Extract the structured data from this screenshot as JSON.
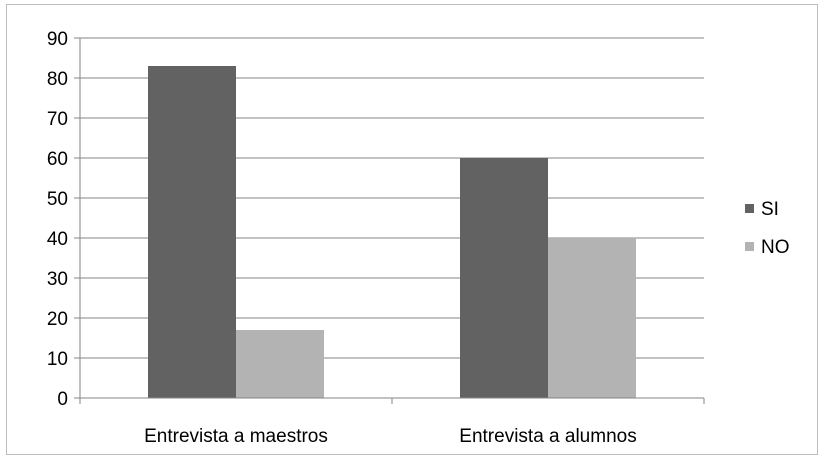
{
  "chart_data": {
    "type": "bar",
    "categories": [
      "Entrevista a maestros",
      "Entrevista a alumnos"
    ],
    "series": [
      {
        "name": "SI",
        "values": [
          83,
          60
        ],
        "color": "#626262"
      },
      {
        "name": "NO",
        "values": [
          17,
          40
        ],
        "color": "#b3b3b3"
      }
    ],
    "ylim": [
      0,
      90
    ],
    "yticks": [
      0,
      10,
      20,
      30,
      40,
      50,
      60,
      70,
      80,
      90
    ],
    "grid": true,
    "legend_position": "right",
    "axis_color": "#868686",
    "grid_color": "#868686"
  }
}
